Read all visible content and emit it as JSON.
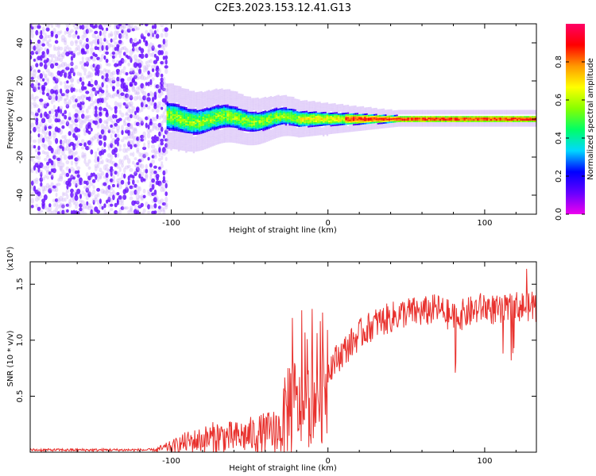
{
  "figure": {
    "title": "C2E3.2023.153.12.41.G13"
  },
  "chart_data": [
    {
      "type": "heatmap",
      "title": "C2E3.2023.153.12.41.G13",
      "xlabel": "Height of straight line (km)",
      "ylabel": "Frequency (Hz)",
      "xlim": [
        -190,
        133
      ],
      "ylim": [
        -50,
        50
      ],
      "xticks": [
        -100,
        0,
        100
      ],
      "yticks": [
        -40,
        -20,
        0,
        20,
        40
      ],
      "colorbar": {
        "label": "Normalized spectral amplitude",
        "range": [
          0,
          1
        ],
        "ticks": [
          0.0,
          0.2,
          0.4,
          0.6,
          0.8
        ],
        "colormap": [
          "#ee00ee",
          "#6600ff",
          "#0000ff",
          "#00d8ff",
          "#00ff66",
          "#88ff00",
          "#ffff00",
          "#ff9900",
          "#ff0000",
          "#ff0066"
        ]
      },
      "features": [
        {
          "region": "noise",
          "x_range": [
            -190,
            -103
          ],
          "freq_range": [
            -50,
            50
          ],
          "amplitude_range": [
            0.0,
            0.12
          ]
        },
        {
          "region": "signal",
          "x_range": [
            -103,
            133
          ],
          "freq_center": 0,
          "freq_halfwidth_start": 8,
          "freq_halfwidth_end": 2,
          "amplitude_range": [
            0.2,
            0.9
          ]
        }
      ]
    },
    {
      "type": "line",
      "xlabel": "Height of straight line (km)",
      "ylabel": "SNR (10 * v/v)",
      "y_multiplier": "(x10⁴)",
      "xlim": [
        -190,
        133
      ],
      "ylim": [
        0,
        1.7
      ],
      "xticks": [
        -100,
        0,
        100
      ],
      "yticks": [
        0.5,
        1.0,
        1.5
      ],
      "series": [
        {
          "color": "#e8312d",
          "x": [
            -190,
            -150,
            -110,
            -100,
            -90,
            -80,
            -70,
            -60,
            -50,
            -40,
            -30,
            -25,
            -20,
            -15,
            -10,
            0,
            10,
            20,
            30,
            40,
            50,
            60,
            70,
            80,
            90,
            100,
            110,
            120,
            130,
            133
          ],
          "y": [
            0.02,
            0.02,
            0.02,
            0.05,
            0.09,
            0.11,
            0.14,
            0.13,
            0.15,
            0.17,
            0.2,
            0.45,
            0.4,
            0.35,
            0.5,
            0.75,
            0.9,
            1.05,
            1.15,
            1.2,
            1.25,
            1.25,
            1.28,
            1.2,
            1.25,
            1.3,
            1.25,
            1.3,
            1.3,
            1.3
          ]
        }
      ]
    }
  ]
}
